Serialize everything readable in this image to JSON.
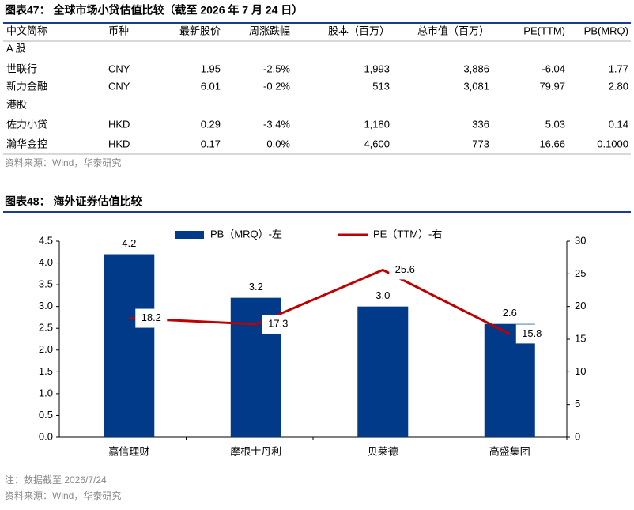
{
  "table": {
    "title": "图表47： 全球市场小贷估值比较（截至 2026 年 7 月 24 日）",
    "columns": [
      "中文简称",
      "币种",
      "最新股价",
      "周涨跌幅",
      "股本（百万）",
      "总市值（百万）",
      "PE(TTM)",
      "PB(MRQ)"
    ],
    "rows": [
      [
        "A 股"
      ],
      [
        "世联行",
        "CNY",
        "1.95",
        "-2.5%",
        "1,993",
        "3,886",
        "-6.04",
        "1.77"
      ],
      [
        "新力金融",
        "CNY",
        "6.01",
        "-0.2%",
        "513",
        "3,081",
        "79.97",
        "2.80"
      ],
      [
        "港股"
      ],
      [
        "佐力小贷",
        "HKD",
        "0.29",
        "-3.4%",
        "1,180",
        "336",
        "5.03",
        "0.14"
      ],
      [
        "瀚华金控",
        "HKD",
        "0.17",
        "0.0%",
        "4,600",
        "773",
        "16.66",
        "0.1000"
      ]
    ],
    "source": "资料来源：Wind，华泰研究"
  },
  "chart_data": {
    "type": "bar",
    "title": "图表48： 海外证券估值比较",
    "categories": [
      "嘉信理财",
      "摩根士丹利",
      "贝莱德",
      "高盛集团"
    ],
    "series": [
      {
        "name": "PB（MRQ）-左",
        "type": "bar",
        "color": "#003a88",
        "values": [
          4.2,
          3.2,
          3.0,
          2.6
        ],
        "value_labels": [
          "4.2",
          "3.2",
          "3.0",
          "2.6"
        ]
      },
      {
        "name": "PE（TTM）-右",
        "type": "line",
        "axis": "y2",
        "color": "#c00000",
        "values": [
          18.2,
          17.3,
          25.6,
          15.8
        ]
      }
    ],
    "ylim": [
      0,
      4.5
    ],
    "yticks": [
      {
        "value": 0,
        "label": "0.0"
      },
      {
        "value": 0.5,
        "label": "0.5"
      },
      {
        "value": 1,
        "label": "1.0"
      },
      {
        "value": 1.5,
        "label": "1.5"
      },
      {
        "value": 2,
        "label": "2.0"
      },
      {
        "value": 2.5,
        "label": "2.5"
      },
      {
        "value": 3,
        "label": "3.0"
      },
      {
        "value": 3.5,
        "label": "3.5"
      },
      {
        "value": 4,
        "label": "4.0"
      },
      {
        "value": 4.5,
        "label": "4.5"
      }
    ],
    "y2lim": [
      0,
      30
    ],
    "y2ticks": [
      0,
      5,
      10,
      15,
      20,
      25,
      30
    ],
    "legend": "top",
    "note": "注：数据截至 2026/7/24",
    "source": "资料来源：Wind，华泰研究"
  }
}
